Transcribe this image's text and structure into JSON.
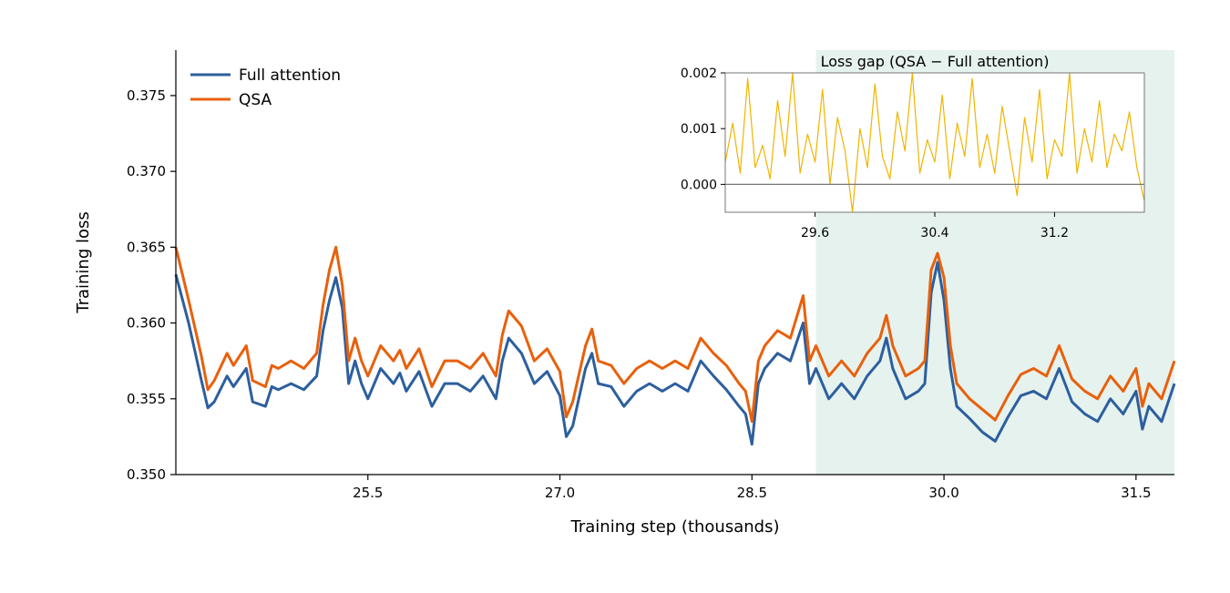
{
  "chart_data": [
    {
      "type": "line",
      "role": "main",
      "title": "",
      "xlabel": "Training step (thousands)",
      "ylabel": "Training loss",
      "xlim": [
        24.0,
        31.8
      ],
      "ylim": [
        0.35,
        0.378
      ],
      "xticks": [
        25.5,
        27.0,
        28.5,
        30.0,
        31.5
      ],
      "xtick_labels": [
        "25.5",
        "27.0",
        "28.5",
        "30.0",
        "31.5"
      ],
      "yticks": [
        0.35,
        0.355,
        0.36,
        0.365,
        0.37,
        0.375
      ],
      "ytick_labels": [
        "0.350",
        "0.355",
        "0.360",
        "0.365",
        "0.370",
        "0.375"
      ],
      "grid": false,
      "legend": "top-left",
      "shaded_region": {
        "x_start": 29.0,
        "x_end": 31.8,
        "color": "#e6f2ee"
      },
      "series": [
        {
          "name": "Full attention",
          "color": "#2c5f9e",
          "x": [
            24.0,
            24.1,
            24.2,
            24.25,
            24.3,
            24.4,
            24.45,
            24.55,
            24.6,
            24.7,
            24.75,
            24.8,
            24.9,
            25.0,
            25.1,
            25.15,
            25.2,
            25.25,
            25.3,
            25.35,
            25.4,
            25.45,
            25.5,
            25.6,
            25.7,
            25.75,
            25.8,
            25.9,
            26.0,
            26.1,
            26.2,
            26.3,
            26.4,
            26.5,
            26.55,
            26.6,
            26.7,
            26.8,
            26.9,
            27.0,
            27.05,
            27.1,
            27.2,
            27.25,
            27.3,
            27.4,
            27.5,
            27.6,
            27.7,
            27.8,
            27.9,
            28.0,
            28.1,
            28.2,
            28.3,
            28.4,
            28.45,
            28.5,
            28.55,
            28.6,
            28.7,
            28.8,
            28.9,
            28.95,
            29.0,
            29.1,
            29.2,
            29.3,
            29.4,
            29.5,
            29.55,
            29.6,
            29.65,
            29.7,
            29.8,
            29.85,
            29.9,
            29.95,
            30.0,
            30.05,
            30.1,
            30.2,
            30.3,
            30.4,
            30.5,
            30.6,
            30.7,
            30.8,
            30.9,
            31.0,
            31.1,
            31.2,
            31.3,
            31.4,
            31.5,
            31.55,
            31.6,
            31.7,
            31.8
          ],
          "y": [
            0.3632,
            0.36,
            0.3562,
            0.3544,
            0.3548,
            0.3565,
            0.3558,
            0.357,
            0.3548,
            0.3545,
            0.3558,
            0.3556,
            0.356,
            0.3556,
            0.3565,
            0.3595,
            0.3615,
            0.363,
            0.361,
            0.356,
            0.3575,
            0.356,
            0.355,
            0.357,
            0.356,
            0.3567,
            0.3555,
            0.3568,
            0.3545,
            0.356,
            0.356,
            0.3555,
            0.3565,
            0.355,
            0.3575,
            0.359,
            0.358,
            0.356,
            0.3568,
            0.3552,
            0.3525,
            0.3532,
            0.357,
            0.358,
            0.356,
            0.3558,
            0.3545,
            0.3555,
            0.356,
            0.3555,
            0.356,
            0.3555,
            0.3575,
            0.3565,
            0.3556,
            0.3545,
            0.354,
            0.352,
            0.356,
            0.357,
            0.358,
            0.3575,
            0.36,
            0.356,
            0.357,
            0.355,
            0.356,
            0.355,
            0.3565,
            0.3575,
            0.359,
            0.357,
            0.356,
            0.355,
            0.3555,
            0.356,
            0.362,
            0.364,
            0.3615,
            0.357,
            0.3545,
            0.3537,
            0.3528,
            0.3522,
            0.3538,
            0.3552,
            0.3555,
            0.355,
            0.357,
            0.3548,
            0.354,
            0.3535,
            0.355,
            0.354,
            0.3555,
            0.353,
            0.3545,
            0.3535,
            0.356
          ]
        },
        {
          "name": "QSA",
          "color": "#e8600c",
          "x": [
            24.0,
            24.1,
            24.2,
            24.25,
            24.3,
            24.4,
            24.45,
            24.55,
            24.6,
            24.7,
            24.75,
            24.8,
            24.9,
            25.0,
            25.1,
            25.15,
            25.2,
            25.25,
            25.3,
            25.35,
            25.4,
            25.45,
            25.5,
            25.6,
            25.7,
            25.75,
            25.8,
            25.9,
            26.0,
            26.1,
            26.2,
            26.3,
            26.4,
            26.5,
            26.55,
            26.6,
            26.7,
            26.8,
            26.9,
            27.0,
            27.05,
            27.1,
            27.2,
            27.25,
            27.3,
            27.4,
            27.5,
            27.6,
            27.7,
            27.8,
            27.9,
            28.0,
            28.1,
            28.2,
            28.3,
            28.4,
            28.45,
            28.5,
            28.55,
            28.6,
            28.7,
            28.8,
            28.9,
            28.95,
            29.0,
            29.1,
            29.2,
            29.3,
            29.4,
            29.5,
            29.55,
            29.6,
            29.65,
            29.7,
            29.8,
            29.85,
            29.9,
            29.95,
            30.0,
            30.05,
            30.1,
            30.2,
            30.3,
            30.4,
            30.5,
            30.6,
            30.7,
            30.8,
            30.9,
            31.0,
            31.1,
            31.2,
            31.3,
            31.4,
            31.5,
            31.55,
            31.6,
            31.7,
            31.8
          ],
          "y": [
            0.365,
            0.3615,
            0.3578,
            0.3556,
            0.3562,
            0.358,
            0.3572,
            0.3585,
            0.3562,
            0.3558,
            0.3572,
            0.357,
            0.3575,
            0.357,
            0.358,
            0.3612,
            0.3635,
            0.365,
            0.3625,
            0.3575,
            0.359,
            0.3575,
            0.3565,
            0.3585,
            0.3575,
            0.3582,
            0.357,
            0.3583,
            0.3558,
            0.3575,
            0.3575,
            0.357,
            0.358,
            0.3565,
            0.3592,
            0.3608,
            0.3598,
            0.3575,
            0.3583,
            0.3568,
            0.3538,
            0.3548,
            0.3585,
            0.3596,
            0.3575,
            0.3572,
            0.356,
            0.357,
            0.3575,
            0.357,
            0.3575,
            0.357,
            0.359,
            0.358,
            0.3572,
            0.356,
            0.3555,
            0.3535,
            0.3575,
            0.3585,
            0.3595,
            0.359,
            0.3618,
            0.3575,
            0.3585,
            0.3565,
            0.3575,
            0.3565,
            0.358,
            0.359,
            0.3605,
            0.3585,
            0.3575,
            0.3565,
            0.357,
            0.3575,
            0.3635,
            0.3646,
            0.363,
            0.3585,
            0.356,
            0.355,
            0.3543,
            0.3536,
            0.3552,
            0.3566,
            0.357,
            0.3565,
            0.3585,
            0.3563,
            0.3555,
            0.355,
            0.3565,
            0.3555,
            0.357,
            0.3545,
            0.356,
            0.355,
            0.3575
          ]
        }
      ]
    },
    {
      "type": "line",
      "role": "inset",
      "title": "Loss gap (QSA − Full attention)",
      "xlabel": "",
      "ylabel": "",
      "xlim": [
        29.0,
        31.8
      ],
      "ylim": [
        -0.0005,
        0.002
      ],
      "xticks": [
        29.6,
        30.4,
        31.2
      ],
      "xtick_labels": [
        "29.6",
        "30.4",
        "31.2"
      ],
      "yticks": [
        0.0,
        0.001,
        0.002
      ],
      "ytick_labels": [
        "0.000",
        "0.001",
        "0.002"
      ],
      "grid": false,
      "reference_line": 0.0,
      "series": [
        {
          "color": "#f0b400",
          "x": [
            29.0,
            29.05,
            29.1,
            29.15,
            29.2,
            29.25,
            29.3,
            29.35,
            29.4,
            29.45,
            29.5,
            29.55,
            29.6,
            29.65,
            29.7,
            29.75,
            29.8,
            29.85,
            29.9,
            29.95,
            30.0,
            30.05,
            30.1,
            30.15,
            30.2,
            30.25,
            30.3,
            30.35,
            30.4,
            30.45,
            30.5,
            30.55,
            30.6,
            30.65,
            30.7,
            30.75,
            30.8,
            30.85,
            30.9,
            30.95,
            31.0,
            31.05,
            31.1,
            31.15,
            31.2,
            31.25,
            31.3,
            31.35,
            31.4,
            31.45,
            31.5,
            31.55,
            31.6,
            31.65,
            31.7,
            31.75,
            31.8
          ],
          "y": [
            0.0004,
            0.0011,
            0.0002,
            0.0019,
            0.0003,
            0.0007,
            0.0001,
            0.0015,
            0.0005,
            0.002,
            0.0002,
            0.0009,
            0.0004,
            0.0017,
            0.0,
            0.0012,
            0.0006,
            -0.0005,
            0.001,
            0.0003,
            0.0018,
            0.0005,
            0.0001,
            0.0013,
            0.0006,
            0.002,
            0.0002,
            0.0008,
            0.0004,
            0.0016,
            0.0001,
            0.0011,
            0.0005,
            0.0019,
            0.0003,
            0.0009,
            0.0002,
            0.0014,
            0.0006,
            -0.0002,
            0.0012,
            0.0004,
            0.0017,
            0.0001,
            0.0008,
            0.0005,
            0.002,
            0.0002,
            0.001,
            0.0004,
            0.0015,
            0.0003,
            0.0009,
            0.0006,
            0.0013,
            0.0003,
            -0.0003
          ]
        }
      ]
    }
  ]
}
